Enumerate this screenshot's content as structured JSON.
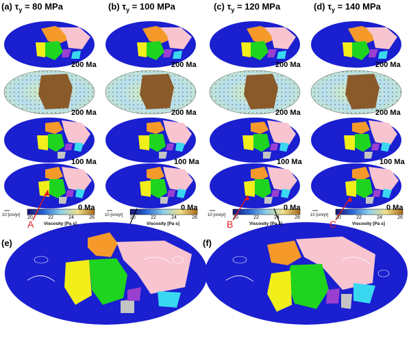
{
  "columns": [
    {
      "label": "(a) ",
      "tau": "τ",
      "sub": "y",
      "value": " = 80 MPa"
    },
    {
      "label": "(b) ",
      "tau": "τ",
      "sub": "y",
      "value": " = 100 MPa"
    },
    {
      "label": "(c) ",
      "tau": "τ",
      "sub": "y",
      "value": " = 120 MPa"
    },
    {
      "label": "(d) ",
      "tau": "τ",
      "sub": "y",
      "value": " = 140 MPa"
    }
  ],
  "ages": [
    "200 Ma",
    "200 Ma",
    "100 Ma",
    "0 Ma"
  ],
  "colorbar": {
    "vector_label": "10 [cm/yr]",
    "ticks": [
      "20",
      "22",
      "24",
      "26"
    ],
    "title": "Viscosity [Pa s]"
  },
  "markers": [
    "A",
    "B",
    "C"
  ],
  "bottom_panels": [
    "(e)",
    "(f)"
  ],
  "colors": {
    "ocean": "#1a1fd0",
    "continent_orange": "#f59a2a",
    "continent_green": "#1fd41f",
    "continent_yellow": "#f2ee1a",
    "continent_pink": "#f7c4cf",
    "continent_purple": "#9a3fd0",
    "continent_cyan": "#3ad8f0",
    "continent_grey": "#c4c4c4",
    "marker_red": "#e0191f"
  }
}
